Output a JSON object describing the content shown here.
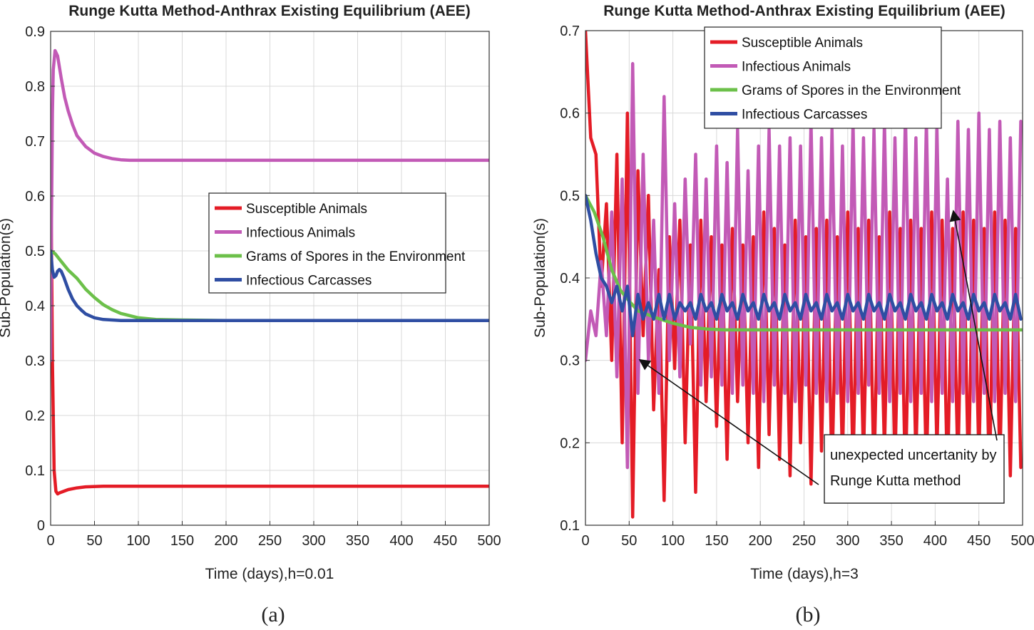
{
  "colors": {
    "susceptible": "#e41c26",
    "infectious_animals": "#c25ab6",
    "spores": "#6cc04a",
    "carcasses": "#2f4ea3"
  },
  "chart_data": [
    {
      "id": "a",
      "type": "line",
      "title": "Runge Kutta Method-Anthrax Existing Equilibrium (AEE)",
      "xlabel": "Time (days),h=0.01",
      "ylabel": "Sub-Population(s)",
      "caption": "(a)",
      "xlim": [
        0,
        500
      ],
      "ylim": [
        0,
        0.9
      ],
      "xticks": [
        "0",
        "50",
        "100",
        "150",
        "200",
        "250",
        "300",
        "350",
        "400",
        "450",
        "500"
      ],
      "yticks": [
        "0",
        "0.1",
        "0.2",
        "0.3",
        "0.4",
        "0.5",
        "0.6",
        "0.7",
        "0.8",
        "0.9"
      ],
      "grid": true,
      "legend": "center-right",
      "series": [
        {
          "name": "Susceptible Animals",
          "color_key": "susceptible",
          "x": [
            0,
            2,
            4,
            6,
            8,
            10,
            20,
            30,
            40,
            60,
            80,
            100,
            200,
            300,
            400,
            500
          ],
          "y": [
            0.7,
            0.3,
            0.1,
            0.062,
            0.057,
            0.059,
            0.065,
            0.068,
            0.07,
            0.071,
            0.071,
            0.071,
            0.071,
            0.071,
            0.071,
            0.071
          ]
        },
        {
          "name": "Infectious Animals",
          "color_key": "infectious_animals",
          "x": [
            0,
            1,
            2,
            3,
            5,
            8,
            12,
            16,
            20,
            25,
            30,
            40,
            50,
            60,
            70,
            80,
            90,
            100,
            150,
            200,
            300,
            400,
            500
          ],
          "y": [
            0.3,
            0.55,
            0.75,
            0.83,
            0.865,
            0.855,
            0.815,
            0.78,
            0.755,
            0.73,
            0.71,
            0.69,
            0.678,
            0.672,
            0.668,
            0.666,
            0.665,
            0.665,
            0.665,
            0.665,
            0.665,
            0.665,
            0.665
          ]
        },
        {
          "name": "Grams of Spores in the Environment",
          "color_key": "spores",
          "x": [
            0,
            5,
            10,
            15,
            20,
            30,
            40,
            50,
            60,
            70,
            80,
            100,
            120,
            150,
            200,
            300,
            400,
            500
          ],
          "y": [
            0.5,
            0.495,
            0.485,
            0.475,
            0.465,
            0.45,
            0.43,
            0.415,
            0.402,
            0.393,
            0.386,
            0.378,
            0.375,
            0.374,
            0.373,
            0.373,
            0.373,
            0.373
          ]
        },
        {
          "name": "Infectious Carcasses",
          "color_key": "carcasses",
          "x": [
            0,
            2,
            4,
            6,
            8,
            10,
            12,
            15,
            20,
            25,
            30,
            35,
            40,
            50,
            60,
            80,
            100,
            200,
            300,
            400,
            500
          ],
          "y": [
            0.5,
            0.465,
            0.452,
            0.455,
            0.463,
            0.466,
            0.463,
            0.452,
            0.43,
            0.412,
            0.4,
            0.392,
            0.385,
            0.378,
            0.375,
            0.373,
            0.373,
            0.373,
            0.373,
            0.373,
            0.373
          ]
        }
      ]
    },
    {
      "id": "b",
      "type": "line",
      "title": "Runge Kutta Method-Anthrax Existing Equilibrium (AEE)",
      "xlabel": "Time (days),h=3",
      "ylabel": "Sub-Population(s)",
      "caption": "(b)",
      "xlim": [
        0,
        500
      ],
      "ylim": [
        0.1,
        0.7
      ],
      "xticks": [
        "0",
        "50",
        "100",
        "150",
        "200",
        "250",
        "300",
        "350",
        "400",
        "450",
        "500"
      ],
      "yticks": [
        "0.1",
        "0.2",
        "0.3",
        "0.4",
        "0.5",
        "0.6",
        "0.7"
      ],
      "grid": true,
      "legend": "top-right",
      "annotation": {
        "lines": [
          "unexpected uncertanity by",
          "Runge Kutta method"
        ],
        "arrow_targets": [
          [
            63,
            0.3
          ],
          [
            421,
            0.48
          ]
        ]
      },
      "series": [
        {
          "name": "Susceptible Animals",
          "color_key": "susceptible",
          "x": [
            0,
            6,
            12,
            18,
            24,
            30,
            36,
            42,
            48,
            54,
            60,
            66,
            72,
            78,
            84,
            90,
            96,
            102,
            108,
            114,
            120,
            126,
            132,
            138,
            144,
            150,
            156,
            162,
            168,
            174,
            180,
            186,
            192,
            198,
            204,
            210,
            216,
            222,
            228,
            234,
            240,
            246,
            252,
            258,
            264,
            270,
            276,
            282,
            288,
            294,
            300,
            306,
            312,
            318,
            324,
            330,
            336,
            342,
            348,
            354,
            360,
            366,
            372,
            378,
            384,
            390,
            396,
            402,
            408,
            414,
            420,
            426,
            432,
            438,
            444,
            450,
            456,
            462,
            468,
            474,
            480,
            486,
            492,
            498
          ],
          "y": [
            0.7,
            0.57,
            0.55,
            0.39,
            0.49,
            0.3,
            0.55,
            0.2,
            0.6,
            0.11,
            0.53,
            0.33,
            0.5,
            0.24,
            0.41,
            0.13,
            0.45,
            0.29,
            0.47,
            0.2,
            0.44,
            0.14,
            0.47,
            0.25,
            0.45,
            0.22,
            0.44,
            0.18,
            0.46,
            0.25,
            0.44,
            0.2,
            0.45,
            0.17,
            0.48,
            0.21,
            0.46,
            0.18,
            0.44,
            0.16,
            0.47,
            0.2,
            0.45,
            0.15,
            0.46,
            0.19,
            0.47,
            0.16,
            0.45,
            0.18,
            0.48,
            0.17,
            0.46,
            0.18,
            0.47,
            0.16,
            0.45,
            0.19,
            0.48,
            0.17,
            0.46,
            0.15,
            0.47,
            0.18,
            0.46,
            0.16,
            0.48,
            0.19,
            0.47,
            0.15,
            0.46,
            0.17,
            0.48,
            0.16,
            0.47,
            0.18,
            0.46,
            0.15,
            0.48,
            0.17,
            0.47,
            0.16,
            0.46,
            0.17
          ]
        },
        {
          "name": "Infectious Animals",
          "color_key": "infectious_animals",
          "x": [
            0,
            6,
            12,
            18,
            24,
            30,
            36,
            42,
            48,
            54,
            60,
            66,
            72,
            78,
            84,
            90,
            96,
            102,
            108,
            114,
            120,
            126,
            132,
            138,
            144,
            150,
            156,
            162,
            168,
            174,
            180,
            186,
            192,
            198,
            204,
            210,
            216,
            222,
            228,
            234,
            240,
            246,
            252,
            258,
            264,
            270,
            276,
            282,
            288,
            294,
            300,
            306,
            312,
            318,
            324,
            330,
            336,
            342,
            348,
            354,
            360,
            366,
            372,
            378,
            384,
            390,
            396,
            402,
            408,
            414,
            420,
            426,
            432,
            438,
            444,
            450,
            456,
            462,
            468,
            474,
            480,
            486,
            492,
            498
          ],
          "y": [
            0.3,
            0.36,
            0.33,
            0.42,
            0.33,
            0.48,
            0.28,
            0.52,
            0.17,
            0.66,
            0.26,
            0.55,
            0.3,
            0.47,
            0.26,
            0.62,
            0.3,
            0.49,
            0.28,
            0.52,
            0.32,
            0.55,
            0.27,
            0.52,
            0.28,
            0.56,
            0.27,
            0.54,
            0.26,
            0.58,
            0.27,
            0.53,
            0.26,
            0.56,
            0.25,
            0.58,
            0.27,
            0.56,
            0.26,
            0.57,
            0.25,
            0.56,
            0.27,
            0.59,
            0.26,
            0.57,
            0.25,
            0.58,
            0.26,
            0.56,
            0.25,
            0.59,
            0.26,
            0.57,
            0.27,
            0.58,
            0.26,
            0.59,
            0.25,
            0.57,
            0.26,
            0.6,
            0.25,
            0.57,
            0.26,
            0.59,
            0.25,
            0.58,
            0.26,
            0.52,
            0.25,
            0.59,
            0.26,
            0.58,
            0.25,
            0.6,
            0.26,
            0.58,
            0.25,
            0.59,
            0.26,
            0.57,
            0.25,
            0.59
          ]
        },
        {
          "name": "Grams of Spores in the Environment",
          "color_key": "spores",
          "x": [
            0,
            10,
            20,
            30,
            40,
            50,
            60,
            80,
            100,
            120,
            140,
            160,
            200,
            250,
            300,
            350,
            400,
            450,
            500
          ],
          "y": [
            0.5,
            0.48,
            0.45,
            0.41,
            0.385,
            0.372,
            0.36,
            0.352,
            0.345,
            0.34,
            0.338,
            0.337,
            0.337,
            0.337,
            0.337,
            0.337,
            0.337,
            0.337,
            0.337
          ]
        },
        {
          "name": "Infectious Carcasses",
          "color_key": "carcasses",
          "x": [
            0,
            6,
            12,
            18,
            24,
            30,
            36,
            42,
            48,
            54,
            60,
            66,
            72,
            78,
            84,
            90,
            96,
            102,
            108,
            114,
            120,
            126,
            132,
            138,
            144,
            150,
            156,
            162,
            168,
            174,
            180,
            186,
            192,
            198,
            204,
            210,
            216,
            222,
            228,
            234,
            240,
            246,
            252,
            258,
            264,
            270,
            276,
            282,
            288,
            294,
            300,
            306,
            312,
            318,
            324,
            330,
            336,
            342,
            348,
            354,
            360,
            366,
            372,
            378,
            384,
            390,
            396,
            402,
            408,
            414,
            420,
            426,
            432,
            438,
            444,
            450,
            456,
            462,
            468,
            474,
            480,
            486,
            492,
            498
          ],
          "y": [
            0.5,
            0.47,
            0.43,
            0.4,
            0.39,
            0.37,
            0.39,
            0.36,
            0.39,
            0.33,
            0.38,
            0.35,
            0.37,
            0.35,
            0.38,
            0.35,
            0.38,
            0.35,
            0.37,
            0.36,
            0.37,
            0.35,
            0.38,
            0.36,
            0.37,
            0.35,
            0.38,
            0.36,
            0.37,
            0.35,
            0.38,
            0.36,
            0.37,
            0.35,
            0.38,
            0.36,
            0.37,
            0.35,
            0.38,
            0.36,
            0.37,
            0.35,
            0.38,
            0.36,
            0.37,
            0.35,
            0.38,
            0.36,
            0.37,
            0.35,
            0.38,
            0.36,
            0.37,
            0.35,
            0.38,
            0.36,
            0.37,
            0.35,
            0.38,
            0.36,
            0.37,
            0.35,
            0.38,
            0.36,
            0.37,
            0.35,
            0.38,
            0.36,
            0.37,
            0.35,
            0.38,
            0.36,
            0.37,
            0.35,
            0.38,
            0.36,
            0.37,
            0.35,
            0.38,
            0.36,
            0.37,
            0.35,
            0.38,
            0.35
          ]
        }
      ]
    }
  ]
}
